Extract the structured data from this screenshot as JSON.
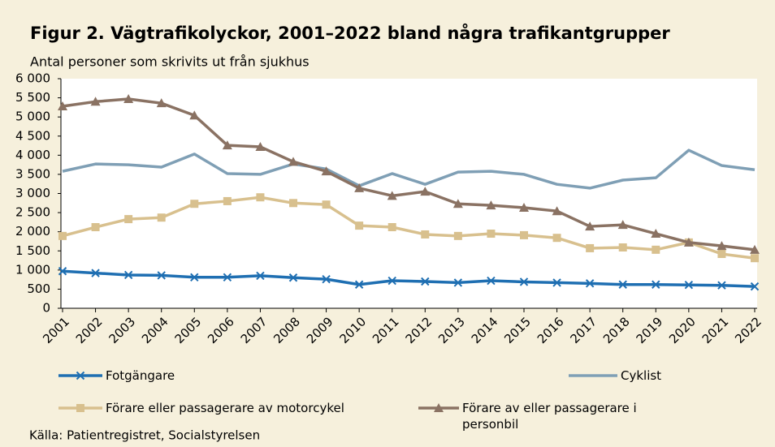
{
  "chart_data": {
    "type": "line",
    "title": "Figur 2. Vägtrafikolyckor, 2001–2022 bland några trafikantgrupper",
    "subtitle": "Antal personer som skrivits ut från sjukhus",
    "source": "Källa: Patientregistret, Socialstyrelsen",
    "categories": [
      "2001",
      "2002",
      "2003",
      "2004",
      "2005",
      "2006",
      "2007",
      "2008",
      "2009",
      "2010",
      "2011",
      "2012",
      "2013",
      "2014",
      "2015",
      "2016",
      "2017",
      "2018",
      "2019",
      "2020",
      "2021",
      "2022"
    ],
    "ylim": [
      0,
      6000
    ],
    "yticks": [
      0,
      500,
      {
        "value": 1000,
        "label": "1 000"
      },
      {
        "value": 1500,
        "label": "1 500"
      },
      {
        "value": 2000,
        "label": "2 000"
      },
      {
        "value": 2500,
        "label": "2 500"
      },
      {
        "value": 3000,
        "label": "3 000"
      },
      {
        "value": 3500,
        "label": "3 500"
      },
      {
        "value": 4000,
        "label": "4 000"
      },
      {
        "value": 4500,
        "label": "4 500"
      },
      {
        "value": 5000,
        "label": "5 000"
      },
      {
        "value": 5500,
        "label": "5 500"
      },
      {
        "value": 6000,
        "label": "6 000"
      }
    ],
    "grid": false,
    "series": [
      {
        "name": "Fotgängare",
        "color": "#1f6fb2",
        "marker": "x",
        "values": [
          970,
          920,
          870,
          860,
          810,
          810,
          850,
          800,
          760,
          620,
          720,
          700,
          670,
          720,
          690,
          670,
          650,
          620,
          620,
          610,
          600,
          570
        ]
      },
      {
        "name": "Cyklist",
        "color": "#7f9fb5",
        "values": [
          3580,
          3770,
          3750,
          3690,
          4030,
          3520,
          3500,
          3770,
          3640,
          3200,
          3520,
          3240,
          3560,
          3580,
          3500,
          3240,
          3140,
          3350,
          3410,
          4130,
          3730,
          3620
        ]
      },
      {
        "name": "Förare eller passagerare av motorcykel",
        "color": "#d8c08e",
        "marker": "square",
        "values": [
          1890,
          2120,
          2330,
          2370,
          2730,
          2800,
          2900,
          2750,
          2710,
          2160,
          2120,
          1930,
          1890,
          1950,
          1910,
          1840,
          1570,
          1590,
          1530,
          1720,
          1420,
          1310
        ]
      },
      {
        "name": "Förare av eller passagerare i personbil",
        "color": "#8a7263",
        "marker": "triangle",
        "values": [
          5280,
          5400,
          5470,
          5360,
          5040,
          4260,
          4220,
          3830,
          3580,
          3140,
          2940,
          3050,
          2730,
          2690,
          2630,
          2540,
          2140,
          2180,
          1950,
          1720,
          1630,
          1530
        ]
      }
    ]
  }
}
